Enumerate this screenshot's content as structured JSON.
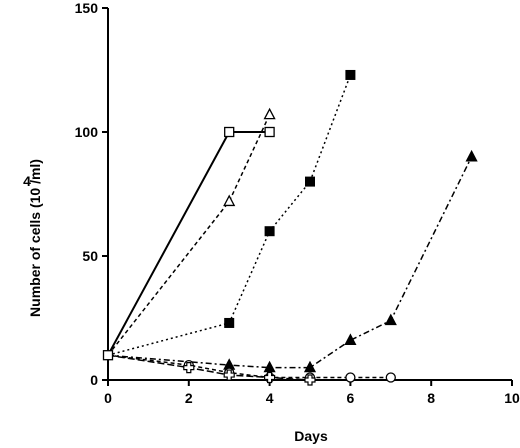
{
  "chart_data": {
    "type": "line",
    "xlabel": "Days",
    "ylabel": "Number of cells (10 /ml)",
    "ylabel_exponent": "4",
    "xlim": [
      0,
      10
    ],
    "ylim": [
      0,
      150
    ],
    "x_ticks": [
      0,
      2,
      4,
      6,
      8,
      10
    ],
    "y_ticks": [
      0,
      50,
      100,
      150
    ],
    "grid": false,
    "series": [
      {
        "marker": "open-square",
        "line": "solid",
        "x": [
          0,
          3,
          4
        ],
        "y": [
          10,
          100,
          100
        ]
      },
      {
        "marker": "open-triangle",
        "line": "dashed",
        "x": [
          0,
          3,
          4
        ],
        "y": [
          10,
          72,
          107
        ]
      },
      {
        "marker": "filled-square",
        "line": "dotted",
        "x": [
          0,
          3,
          4,
          5,
          6
        ],
        "y": [
          10,
          23,
          60,
          80,
          123
        ]
      },
      {
        "marker": "filled-triangle",
        "line": "dash-dot",
        "x": [
          0,
          3,
          4,
          5,
          6,
          7,
          9
        ],
        "y": [
          10,
          6,
          5,
          5,
          16,
          24,
          90
        ]
      },
      {
        "marker": "open-circle",
        "line": "dashed",
        "x": [
          0,
          2,
          3,
          4,
          5,
          6,
          7
        ],
        "y": [
          10,
          6,
          3,
          1,
          1,
          1,
          1
        ]
      },
      {
        "marker": "open-cross",
        "line": "long-dash",
        "x": [
          0,
          2,
          3,
          4,
          5
        ],
        "y": [
          10,
          5,
          2,
          1,
          0
        ]
      }
    ]
  }
}
